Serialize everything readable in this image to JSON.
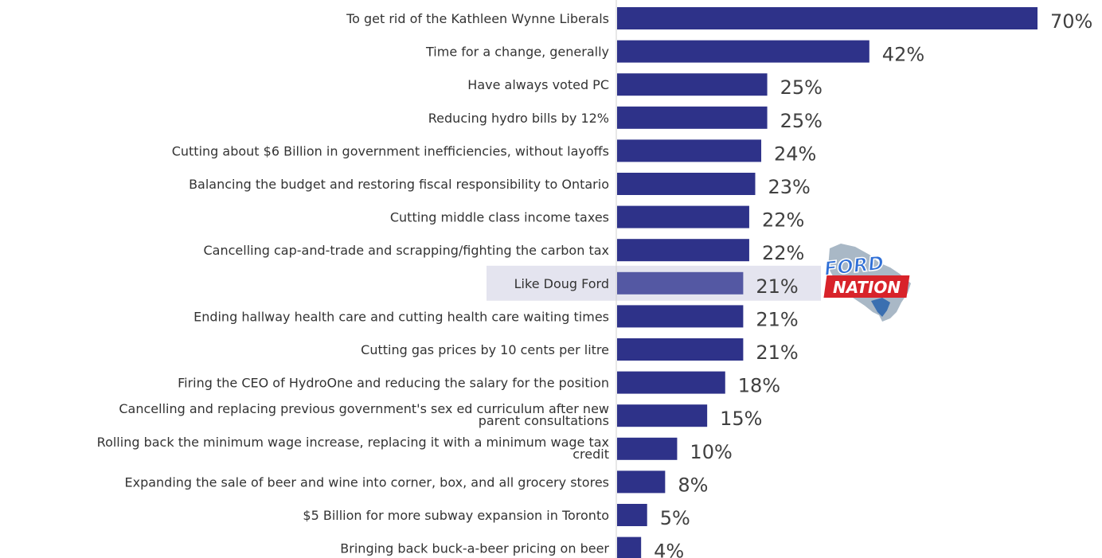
{
  "chart_data": {
    "type": "bar",
    "orientation": "horizontal",
    "categories": [
      "To get rid of the Kathleen Wynne Liberals",
      "Time for a change, generally",
      "Have always voted PC",
      "Reducing hydro bills by 12%",
      "Cutting about $6 Billion in government inefficiencies, without layoffs",
      "Balancing the budget and restoring fiscal responsibility to Ontario",
      "Cutting middle class income taxes",
      "Cancelling cap-and-trade and scrapping/fighting the carbon tax",
      "Like Doug Ford",
      "Ending hallway health care and cutting health care waiting times",
      "Cutting gas prices by 10 cents per litre",
      "Firing the CEO of HydroOne and reducing the salary for the position",
      "Cancelling and replacing previous government's sex ed curriculum after new parent consultations",
      "Rolling back the minimum wage increase, replacing it with a minimum wage tax credit",
      "Expanding the sale of beer and wine into corner, box, and all grocery stores",
      "$5 Billion for more subway expansion in Toronto",
      "Bringing back buck-a-beer pricing on beer"
    ],
    "label_lines": [
      [
        "To get rid of the Kathleen Wynne Liberals"
      ],
      [
        "Time for a change, generally"
      ],
      [
        "Have always voted PC"
      ],
      [
        "Reducing hydro bills by 12%"
      ],
      [
        "Cutting about $6 Billion in government inefficiencies, without layoffs"
      ],
      [
        "Balancing the budget and restoring fiscal responsibility to Ontario"
      ],
      [
        "Cutting middle class income taxes"
      ],
      [
        "Cancelling cap-and-trade and scrapping/fighting the carbon tax"
      ],
      [
        "Like Doug Ford"
      ],
      [
        "Ending hallway health care and cutting health care waiting times"
      ],
      [
        "Cutting gas prices by 10 cents per litre"
      ],
      [
        "Firing the CEO of HydroOne and reducing the salary for the position"
      ],
      [
        "Cancelling and replacing previous government's sex ed curriculum after new",
        "parent consultations"
      ],
      [
        "Rolling back the minimum wage increase, replacing it with a minimum wage tax",
        "credit"
      ],
      [
        "Expanding the sale of beer and wine into corner, box, and all grocery stores"
      ],
      [
        "$5 Billion for more subway expansion in Toronto"
      ],
      [
        "Bringing back buck-a-beer pricing on beer"
      ]
    ],
    "values": [
      70,
      42,
      25,
      25,
      24,
      23,
      22,
      22,
      21,
      21,
      21,
      18,
      15,
      10,
      8,
      5,
      4
    ],
    "value_labels": [
      "70%",
      "42%",
      "25%",
      "25%",
      "24%",
      "23%",
      "22%",
      "22%",
      "21%",
      "21%",
      "21%",
      "18%",
      "15%",
      "10%",
      "8%",
      "5%",
      "4%"
    ],
    "highlight_index": 8,
    "xlim": [
      0,
      70
    ],
    "grid": false,
    "legend": "none",
    "colors": {
      "bar": "#2e3289",
      "highlight_bar": "#5458a3",
      "highlight_band": "#e4e4ef"
    },
    "logo": {
      "name": "ford-nation-logo",
      "line1": "FORD",
      "line2": "NATION"
    }
  }
}
